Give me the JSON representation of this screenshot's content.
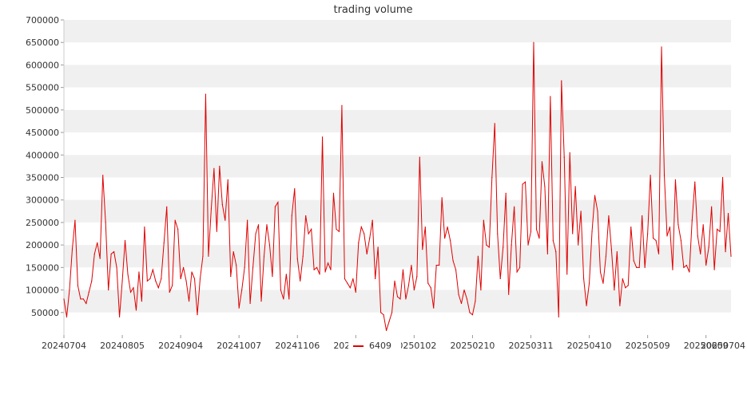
{
  "chart_data": {
    "type": "line",
    "title": "trading volume",
    "xlabel": "",
    "ylabel": "",
    "ylim": [
      0,
      700000
    ],
    "yticks": [
      50000,
      100000,
      150000,
      200000,
      250000,
      300000,
      350000,
      400000,
      450000,
      500000,
      550000,
      600000,
      650000,
      700000
    ],
    "ytick_labels": [
      "50000",
      "100000",
      "150000",
      "200000",
      "250000",
      "300000",
      "350000",
      "400000",
      "450000",
      "500000",
      "550000",
      "600000",
      "650000",
      "700000"
    ],
    "xtick_labels": [
      "20240704",
      "20240805",
      "20240904",
      "20241007",
      "20241106",
      "20241206",
      "20250102",
      "20250210",
      "20250311",
      "20250410",
      "20250509",
      "20250609",
      "20250704"
    ],
    "xtick_index": [
      0,
      21,
      42,
      63,
      84,
      105,
      126,
      147,
      168,
      189,
      210,
      231,
      252
    ],
    "grid": "horizontal bands",
    "legend": "bottom",
    "series": [
      {
        "name": "6409",
        "color": "#e00000",
        "values": [
          80000,
          40000,
          100000,
          190000,
          255000,
          110000,
          80000,
          80000,
          70000,
          95000,
          120000,
          180000,
          205000,
          170000,
          355000,
          250000,
          100000,
          180000,
          185000,
          150000,
          40000,
          120000,
          210000,
          135000,
          95000,
          105000,
          55000,
          140000,
          75000,
          240000,
          120000,
          125000,
          145000,
          120000,
          105000,
          125000,
          205000,
          285000,
          95000,
          110000,
          255000,
          235000,
          125000,
          150000,
          120000,
          75000,
          140000,
          125000,
          45000,
          125000,
          175000,
          535000,
          175000,
          280000,
          370000,
          230000,
          375000,
          290000,
          255000,
          345000,
          130000,
          185000,
          155000,
          60000,
          100000,
          150000,
          255000,
          70000,
          150000,
          225000,
          245000,
          75000,
          175000,
          245000,
          200000,
          130000,
          285000,
          295000,
          100000,
          80000,
          135000,
          80000,
          265000,
          325000,
          170000,
          120000,
          175000,
          265000,
          225000,
          235000,
          145000,
          150000,
          135000,
          440000,
          140000,
          160000,
          145000,
          315000,
          235000,
          230000,
          510000,
          125000,
          115000,
          105000,
          125000,
          95000,
          205000,
          240000,
          225000,
          180000,
          215000,
          255000,
          125000,
          195000,
          50000,
          45000,
          10000,
          30000,
          50000,
          120000,
          85000,
          80000,
          145000,
          80000,
          110000,
          155000,
          100000,
          130000,
          395000,
          190000,
          240000,
          115000,
          105000,
          60000,
          155000,
          155000,
          305000,
          215000,
          240000,
          210000,
          165000,
          145000,
          90000,
          70000,
          100000,
          80000,
          50000,
          45000,
          75000,
          175000,
          100000,
          255000,
          200000,
          195000,
          350000,
          470000,
          225000,
          125000,
          195000,
          315000,
          90000,
          200000,
          285000,
          140000,
          150000,
          335000,
          340000,
          200000,
          230000,
          650000,
          235000,
          215000,
          385000,
          330000,
          180000,
          530000,
          210000,
          185000,
          40000,
          565000,
          395000,
          135000,
          405000,
          225000,
          330000,
          200000,
          275000,
          125000,
          65000,
          115000,
          230000,
          310000,
          275000,
          140000,
          115000,
          175000,
          265000,
          190000,
          100000,
          185000,
          65000,
          125000,
          105000,
          110000,
          240000,
          165000,
          150000,
          150000,
          265000,
          150000,
          225000,
          355000,
          215000,
          210000,
          180000,
          640000,
          355000,
          220000,
          240000,
          145000,
          345000,
          245000,
          210000,
          150000,
          155000,
          140000,
          255000,
          340000,
          220000,
          180000,
          245000,
          155000,
          195000,
          285000,
          145000,
          235000,
          230000,
          350000,
          185000,
          270000,
          175000
        ]
      }
    ]
  }
}
